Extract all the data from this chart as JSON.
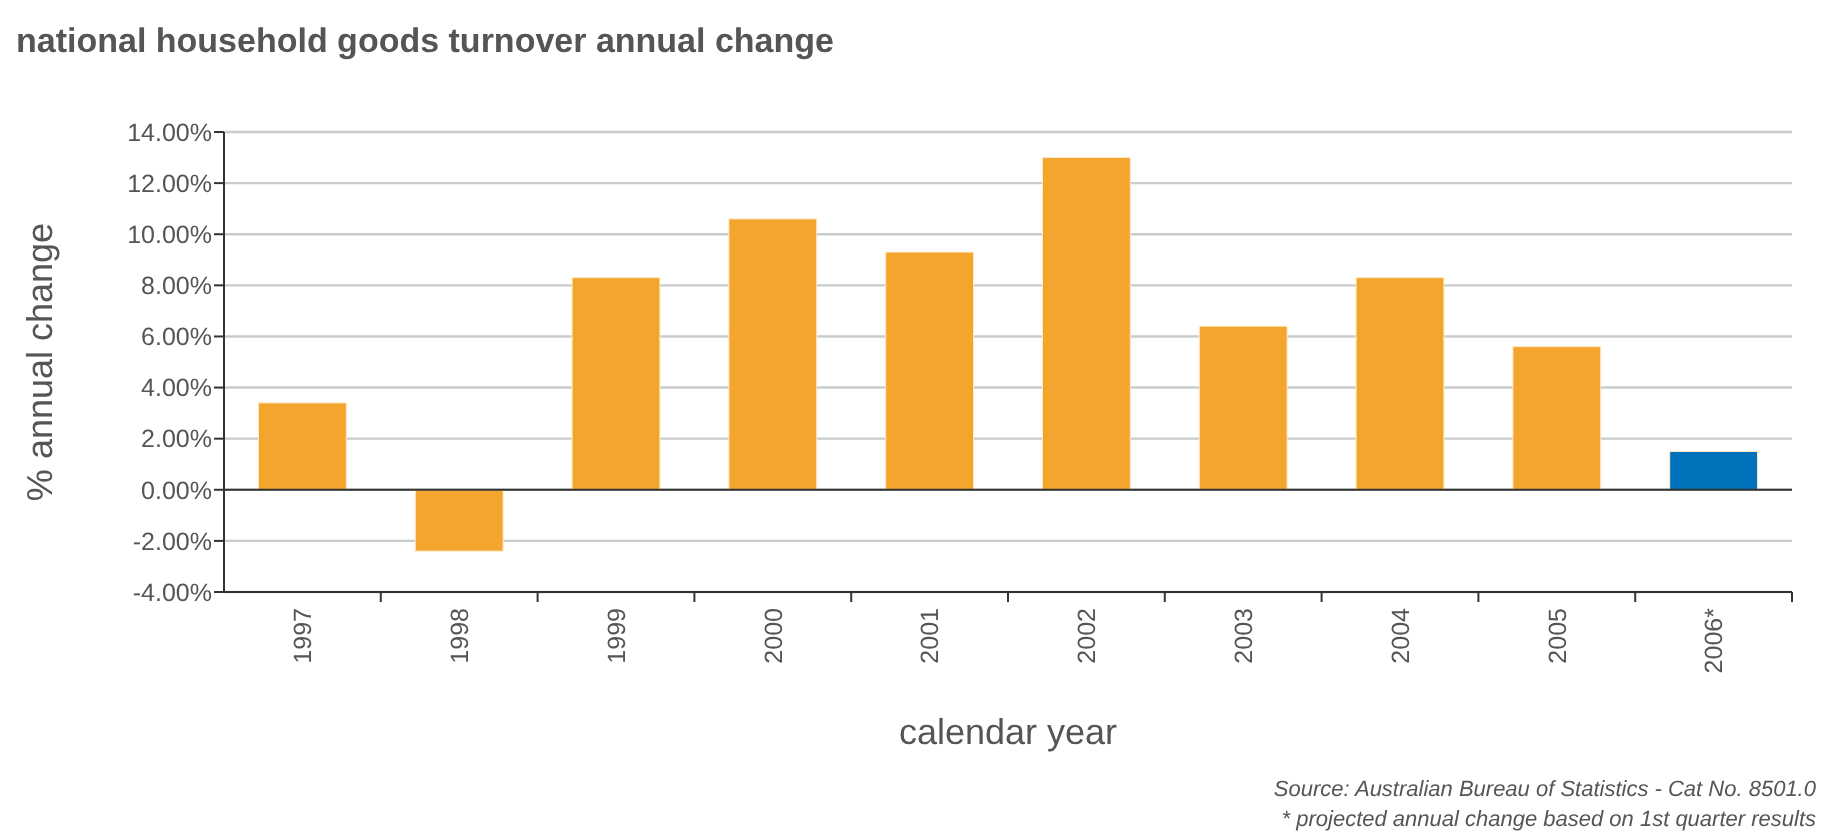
{
  "chart_data": {
    "type": "bar",
    "title": "national household goods turnover annual change",
    "xlabel": "calendar year",
    "ylabel": "% annual change",
    "categories": [
      "1997",
      "1998",
      "1999",
      "2000",
      "2001",
      "2002",
      "2003",
      "2004",
      "2005",
      "2006*"
    ],
    "values": [
      3.4,
      -2.4,
      8.3,
      10.6,
      9.3,
      13.0,
      6.4,
      8.3,
      5.6,
      1.5
    ],
    "colors": [
      "#f4a52d",
      "#f4a52d",
      "#f4a52d",
      "#f4a52d",
      "#f4a52d",
      "#f4a52d",
      "#f4a52d",
      "#f4a52d",
      "#f4a52d",
      "#0072bc"
    ],
    "ylim": [
      -4,
      14
    ],
    "yticks": [
      {
        "value": -4,
        "label": "-4.00%"
      },
      {
        "value": -2,
        "label": "-2.00%"
      },
      {
        "value": 0,
        "label": "0.00%"
      },
      {
        "value": 2,
        "label": "2.00%"
      },
      {
        "value": 4,
        "label": "4.00%"
      },
      {
        "value": 6,
        "label": "6.00%"
      },
      {
        "value": 8,
        "label": "8.00%"
      },
      {
        "value": 10,
        "label": "10.00%"
      },
      {
        "value": 12,
        "label": "12.00%"
      },
      {
        "value": 14,
        "label": "14.00%"
      }
    ],
    "grid": "y",
    "annotations": [
      "Source: Australian Bureau of Statistics - Cat No. 8501.0",
      "* projected annual change based on 1st quarter results"
    ]
  }
}
